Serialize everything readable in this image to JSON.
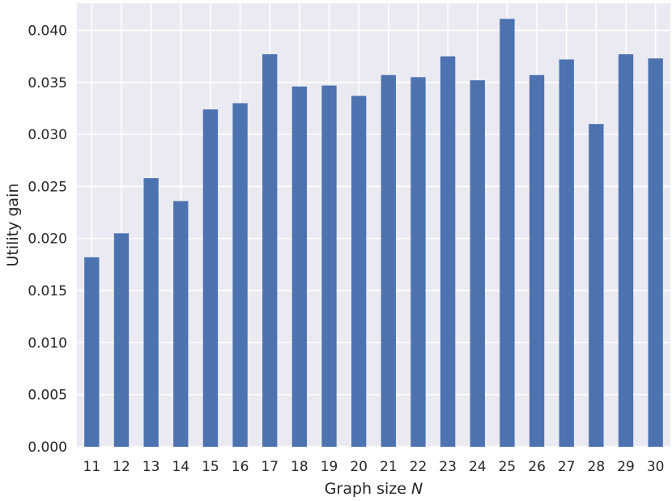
{
  "chart_data": {
    "type": "bar",
    "title": "",
    "xlabel": "Graph size",
    "xlabel_var": "N",
    "ylabel": "Utility gain",
    "categories": [
      "11",
      "12",
      "13",
      "14",
      "15",
      "16",
      "17",
      "18",
      "19",
      "20",
      "21",
      "22",
      "23",
      "24",
      "25",
      "26",
      "27",
      "28",
      "29",
      "30"
    ],
    "values": [
      0.0182,
      0.0205,
      0.0258,
      0.0236,
      0.0324,
      0.033,
      0.0377,
      0.0346,
      0.0347,
      0.0337,
      0.0357,
      0.0355,
      0.0375,
      0.0352,
      0.0411,
      0.0357,
      0.0372,
      0.031,
      0.0377,
      0.0373
    ],
    "ylim": [
      0,
      0.0426
    ],
    "yticks": [
      0.0,
      0.005,
      0.01,
      0.015,
      0.02,
      0.025,
      0.03,
      0.035,
      0.04
    ],
    "ytick_labels": [
      "0.000",
      "0.005",
      "0.010",
      "0.015",
      "0.020",
      "0.025",
      "0.030",
      "0.035",
      "0.040"
    ],
    "grid": true,
    "colors": {
      "bar": "#4c72b0",
      "background": "#eaeaf2",
      "grid": "#ffffff"
    }
  }
}
